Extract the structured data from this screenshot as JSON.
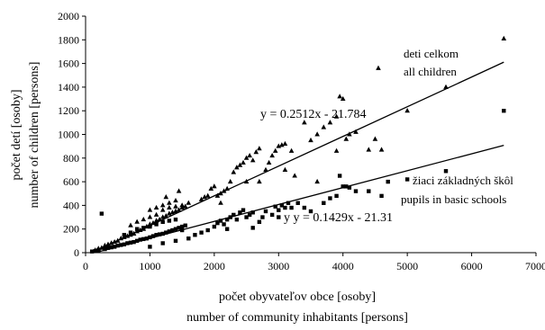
{
  "chart_data": {
    "type": "scatter",
    "xlabel_lines": [
      "počet obyvateľov obce  [osoby]",
      "number of community inhabitants   [persons]"
    ],
    "ylabel_lines": [
      "počet detí  [osoby]",
      "number of children  [persons]"
    ],
    "xlim": [
      0,
      7000
    ],
    "ylim": [
      0,
      2000
    ],
    "x_ticks": [
      "0",
      "1000",
      "2000",
      "3000",
      "4000",
      "5000",
      "6000",
      "7000"
    ],
    "y_ticks": [
      "0",
      "200",
      "400",
      "600",
      "800",
      "1000",
      "1200",
      "1400",
      "1600",
      "1800",
      "2000"
    ],
    "grid": false,
    "legend": "none",
    "series": [
      {
        "label_lines": [
          "deti celkom",
          "all children"
        ],
        "marker": "triangle",
        "trendline": {
          "equation": "y = 0.2512x - 21.784",
          "slope": 0.2512,
          "intercept": -21.784,
          "x_range": [
            0,
            6500
          ]
        },
        "points": [
          [
            150,
            20
          ],
          [
            200,
            35
          ],
          [
            250,
            40
          ],
          [
            300,
            60
          ],
          [
            350,
            70
          ],
          [
            400,
            80
          ],
          [
            450,
            90
          ],
          [
            500,
            100
          ],
          [
            550,
            120
          ],
          [
            600,
            130
          ],
          [
            650,
            140
          ],
          [
            700,
            150
          ],
          [
            750,
            160
          ],
          [
            800,
            180
          ],
          [
            850,
            190
          ],
          [
            900,
            200
          ],
          [
            950,
            220
          ],
          [
            1000,
            240
          ],
          [
            1050,
            250
          ],
          [
            1100,
            270
          ],
          [
            1150,
            280
          ],
          [
            1200,
            300
          ],
          [
            1250,
            310
          ],
          [
            1300,
            330
          ],
          [
            1350,
            340
          ],
          [
            1400,
            350
          ],
          [
            1450,
            360
          ],
          [
            1500,
            380
          ],
          [
            1550,
            390
          ],
          [
            1600,
            420
          ],
          [
            700,
            230
          ],
          [
            800,
            260
          ],
          [
            900,
            280
          ],
          [
            1000,
            300
          ],
          [
            1100,
            320
          ],
          [
            1200,
            360
          ],
          [
            1300,
            380
          ],
          [
            1400,
            390
          ],
          [
            1500,
            400
          ],
          [
            1000,
            360
          ],
          [
            1100,
            380
          ],
          [
            1200,
            400
          ],
          [
            1300,
            420
          ],
          [
            1400,
            440
          ],
          [
            1250,
            470
          ],
          [
            1450,
            520
          ],
          [
            1800,
            450
          ],
          [
            1850,
            470
          ],
          [
            1900,
            480
          ],
          [
            1950,
            540
          ],
          [
            2000,
            560
          ],
          [
            2050,
            480
          ],
          [
            2100,
            500
          ],
          [
            2150,
            520
          ],
          [
            2200,
            540
          ],
          [
            2250,
            600
          ],
          [
            2300,
            680
          ],
          [
            2350,
            720
          ],
          [
            2400,
            740
          ],
          [
            2450,
            760
          ],
          [
            2500,
            800
          ],
          [
            2550,
            820
          ],
          [
            2600,
            780
          ],
          [
            2650,
            850
          ],
          [
            2700,
            880
          ],
          [
            2800,
            700
          ],
          [
            2850,
            760
          ],
          [
            2900,
            820
          ],
          [
            2950,
            860
          ],
          [
            3000,
            900
          ],
          [
            3050,
            910
          ],
          [
            3100,
            920
          ],
          [
            3200,
            860
          ],
          [
            3400,
            1100
          ],
          [
            3500,
            950
          ],
          [
            3600,
            1000
          ],
          [
            3700,
            1060
          ],
          [
            3800,
            1100
          ],
          [
            3900,
            1150
          ],
          [
            3950,
            1320
          ],
          [
            4000,
            1300
          ],
          [
            4050,
            960
          ],
          [
            4100,
            1000
          ],
          [
            4200,
            1020
          ],
          [
            4400,
            870
          ],
          [
            4600,
            870
          ],
          [
            4550,
            1560
          ],
          [
            5000,
            1200
          ],
          [
            5600,
            1400
          ],
          [
            6500,
            1810
          ],
          [
            2100,
            420
          ],
          [
            2500,
            600
          ],
          [
            2700,
            600
          ],
          [
            3100,
            700
          ],
          [
            3250,
            650
          ],
          [
            3600,
            600
          ],
          [
            3900,
            860
          ],
          [
            4500,
            960
          ]
        ]
      },
      {
        "label_lines": [
          "žiaci základných škôl",
          "pupils in basic schools"
        ],
        "marker": "square",
        "trendline": {
          "equation": "y y = 0.1429x - 21.31",
          "slope": 0.1429,
          "intercept": -21.31,
          "x_range": [
            0,
            6500
          ]
        },
        "points": [
          [
            100,
            10
          ],
          [
            150,
            15
          ],
          [
            200,
            20
          ],
          [
            250,
            330
          ],
          [
            300,
            30
          ],
          [
            350,
            40
          ],
          [
            400,
            45
          ],
          [
            450,
            50
          ],
          [
            500,
            60
          ],
          [
            550,
            65
          ],
          [
            600,
            70
          ],
          [
            650,
            80
          ],
          [
            700,
            85
          ],
          [
            750,
            90
          ],
          [
            800,
            100
          ],
          [
            850,
            110
          ],
          [
            900,
            115
          ],
          [
            950,
            120
          ],
          [
            1000,
            130
          ],
          [
            1050,
            140
          ],
          [
            1100,
            150
          ],
          [
            1150,
            155
          ],
          [
            1200,
            160
          ],
          [
            1250,
            170
          ],
          [
            1300,
            180
          ],
          [
            1350,
            190
          ],
          [
            1400,
            200
          ],
          [
            1450,
            210
          ],
          [
            1500,
            220
          ],
          [
            1550,
            230
          ],
          [
            600,
            150
          ],
          [
            700,
            170
          ],
          [
            800,
            200
          ],
          [
            900,
            210
          ],
          [
            1000,
            220
          ],
          [
            1100,
            240
          ],
          [
            1200,
            260
          ],
          [
            1300,
            270
          ],
          [
            1400,
            280
          ],
          [
            1500,
            190
          ],
          [
            1000,
            50
          ],
          [
            1200,
            80
          ],
          [
            1400,
            100
          ],
          [
            1600,
            120
          ],
          [
            1700,
            150
          ],
          [
            1800,
            170
          ],
          [
            1900,
            190
          ],
          [
            2000,
            220
          ],
          [
            2050,
            250
          ],
          [
            2100,
            270
          ],
          [
            2150,
            240
          ],
          [
            2200,
            280
          ],
          [
            2250,
            300
          ],
          [
            2300,
            320
          ],
          [
            2350,
            280
          ],
          [
            2400,
            340
          ],
          [
            2450,
            360
          ],
          [
            2500,
            300
          ],
          [
            2550,
            320
          ],
          [
            2600,
            340
          ],
          [
            2700,
            260
          ],
          [
            2750,
            300
          ],
          [
            2800,
            350
          ],
          [
            2900,
            320
          ],
          [
            2950,
            390
          ],
          [
            3000,
            360
          ],
          [
            3050,
            400
          ],
          [
            3100,
            380
          ],
          [
            3150,
            420
          ],
          [
            3200,
            380
          ],
          [
            3400,
            380
          ],
          [
            3500,
            350
          ],
          [
            3700,
            420
          ],
          [
            3800,
            460
          ],
          [
            3900,
            480
          ],
          [
            3950,
            650
          ],
          [
            4000,
            560
          ],
          [
            4050,
            560
          ],
          [
            4100,
            550
          ],
          [
            4200,
            520
          ],
          [
            4400,
            520
          ],
          [
            4600,
            480
          ],
          [
            4700,
            600
          ],
          [
            5000,
            620
          ],
          [
            5600,
            690
          ],
          [
            6500,
            1200
          ],
          [
            2200,
            200
          ],
          [
            2600,
            210
          ],
          [
            3000,
            300
          ],
          [
            3300,
            420
          ]
        ]
      }
    ]
  }
}
